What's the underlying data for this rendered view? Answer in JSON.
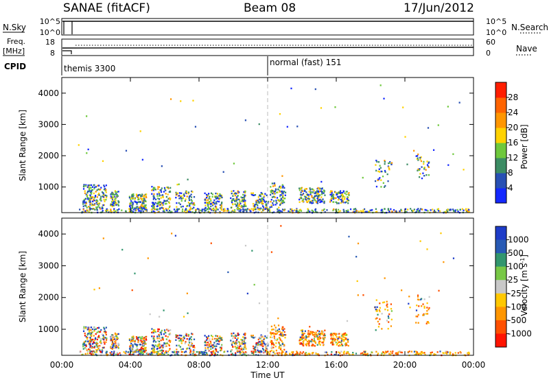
{
  "header": {
    "title": "SANAE (fitACF)",
    "beam": "Beam 08",
    "date": "17/Jun/2012"
  },
  "top_panels": {
    "nsky_label": "N.Sky",
    "nsky_ticks": [
      "10^5",
      "10^0"
    ],
    "nsearch_label": "N.Search",
    "nsearch_ticks": [
      "10^5",
      "10^0"
    ],
    "freq_label": "Freq.",
    "freq_unit": "[MHz]",
    "freq_ticks": [
      "18",
      "8"
    ],
    "nave_label": "Nave",
    "nave_ticks": [
      "60",
      "0"
    ],
    "cpid_label": "CPID",
    "cpid_modes": [
      "themis 3300",
      "normal (fast) 151"
    ]
  },
  "chart_data": [
    {
      "type": "heatmap",
      "name": "power",
      "ylabel": "Slant Range [km]",
      "yticks": [
        "1000",
        "2000",
        "3000",
        "4000"
      ],
      "colorbar_label": "Power [dB]",
      "colorbar_ticks": [
        "4",
        "8",
        "12",
        "16",
        "20",
        "24",
        "28"
      ],
      "colors": [
        "#1428ff",
        "#2850b4",
        "#3c8c64",
        "#6ec83c",
        "#ffd200",
        "#ff9600",
        "#ff6400",
        "#ff1e00"
      ]
    },
    {
      "type": "heatmap",
      "name": "velocity",
      "ylabel": "Slant Range [km]",
      "yticks": [
        "1000",
        "2000",
        "3000",
        "4000"
      ],
      "colorbar_label": "Velocity [m s",
      "colorbar_label_sup": "-1",
      "colorbar_label_end": "]",
      "colorbar_ticks": [
        "1000",
        "500",
        "100",
        "25",
        "-25",
        "-100",
        "-500",
        "-1000"
      ],
      "colors": [
        "#1e3cc8",
        "#285ab4",
        "#32966e",
        "#78c846",
        "#c8c8c8",
        "#ffc800",
        "#ff9600",
        "#ff5000",
        "#ff1400"
      ]
    }
  ],
  "x_axis": {
    "ticks": [
      "00:00",
      "04:00",
      "08:00",
      "12:00",
      "16:00",
      "20:00",
      "00:00"
    ],
    "label": "Time UT"
  }
}
